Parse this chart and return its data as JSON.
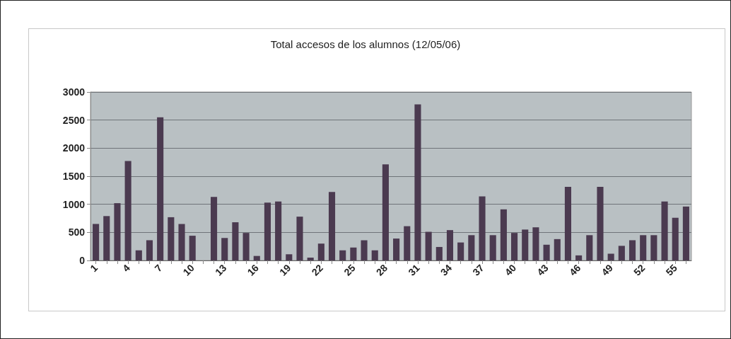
{
  "chart_data": {
    "type": "bar",
    "title": "Total accesos de los alumnos (12/05/06)",
    "categories": [
      "1",
      null,
      null,
      "4",
      null,
      null,
      "7",
      null,
      null,
      "10",
      null,
      null,
      "13",
      null,
      null,
      "16",
      null,
      null,
      "19",
      null,
      null,
      "22",
      null,
      null,
      "25",
      null,
      null,
      "28",
      null,
      null,
      "31",
      null,
      null,
      "34",
      null,
      null,
      "37",
      null,
      null,
      "40",
      null,
      null,
      "43",
      null,
      null,
      "46",
      null,
      null,
      "49",
      null,
      null,
      "52",
      null,
      null,
      "55",
      null
    ],
    "values": [
      650,
      790,
      1020,
      1770,
      180,
      360,
      2550,
      770,
      650,
      440,
      0,
      1130,
      400,
      680,
      490,
      80,
      1030,
      1050,
      110,
      780,
      50,
      300,
      1220,
      180,
      230,
      360,
      180,
      1710,
      390,
      610,
      2780,
      510,
      240,
      540,
      320,
      450,
      1140,
      450,
      910,
      490,
      550,
      590,
      280,
      380,
      1310,
      90,
      450,
      1310,
      120,
      260,
      360,
      450,
      450,
      1050,
      760,
      960
    ],
    "color": "#4b3a50",
    "ylim": [
      0,
      3000
    ],
    "yticks": [
      0,
      500,
      1000,
      1500,
      2000,
      2500,
      3000
    ],
    "grid": "y"
  }
}
